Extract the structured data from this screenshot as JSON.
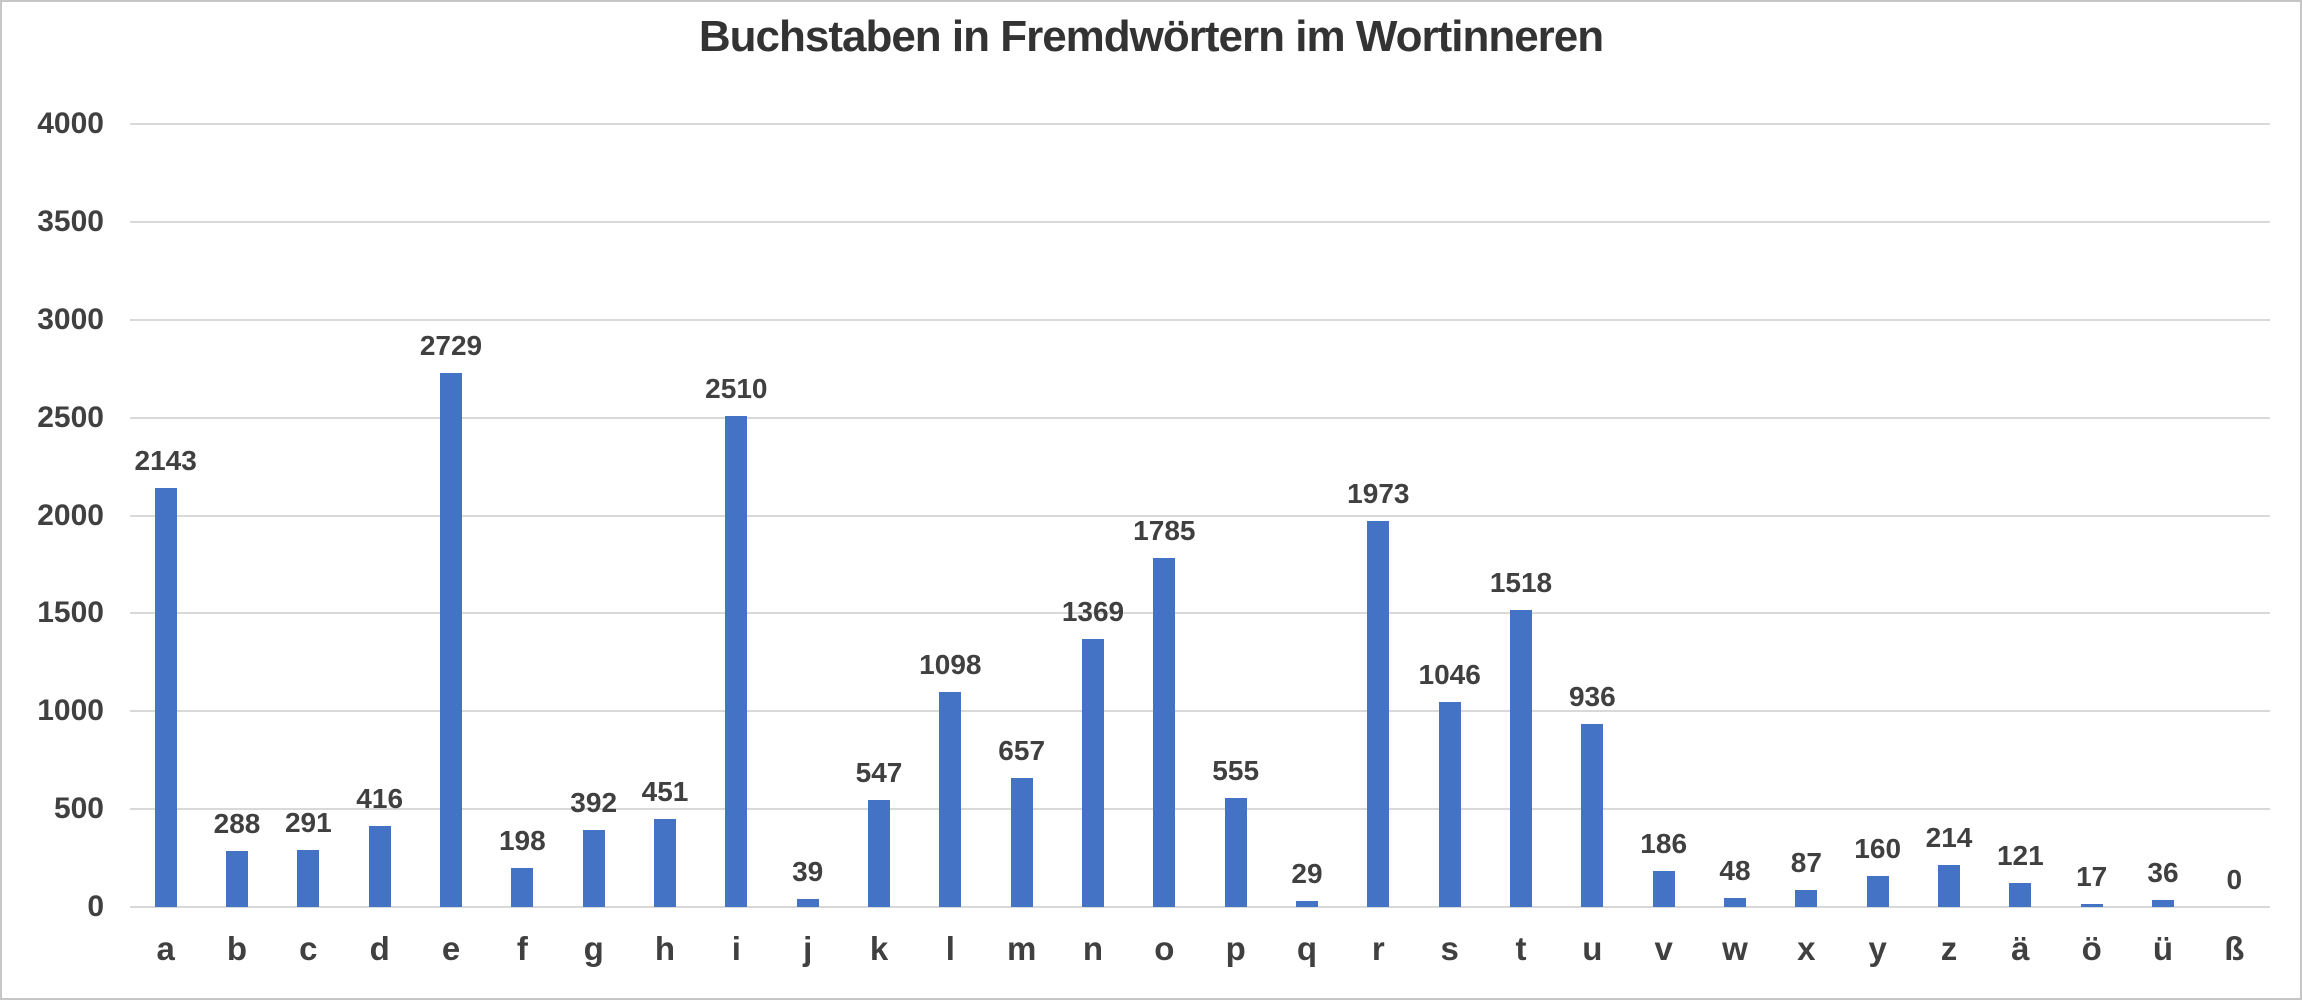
{
  "chart_data": {
    "type": "bar",
    "title": "Buchstaben in Fremdwörtern im Wortinneren",
    "categories": [
      "a",
      "b",
      "c",
      "d",
      "e",
      "f",
      "g",
      "h",
      "i",
      "j",
      "k",
      "l",
      "m",
      "n",
      "o",
      "p",
      "q",
      "r",
      "s",
      "t",
      "u",
      "v",
      "w",
      "x",
      "y",
      "z",
      "ä",
      "ö",
      "ü",
      "ß"
    ],
    "values": [
      2143,
      288,
      291,
      416,
      2729,
      198,
      392,
      451,
      2510,
      39,
      547,
      1098,
      657,
      1369,
      1785,
      555,
      29,
      1973,
      1046,
      1518,
      936,
      186,
      48,
      87,
      160,
      214,
      121,
      17,
      36,
      0
    ],
    "xlabel": "",
    "ylabel": "",
    "ylim": [
      0,
      4000
    ],
    "yticks": [
      0,
      500,
      1000,
      1500,
      2000,
      2500,
      3000,
      3500,
      4000
    ],
    "grid": "horizontal",
    "legend": "none",
    "data_labels": "above-bars",
    "bar_color": "#4472c4",
    "gridline_color": "#d9d9d9",
    "label_color": "#404040",
    "title_color": "#333333"
  }
}
